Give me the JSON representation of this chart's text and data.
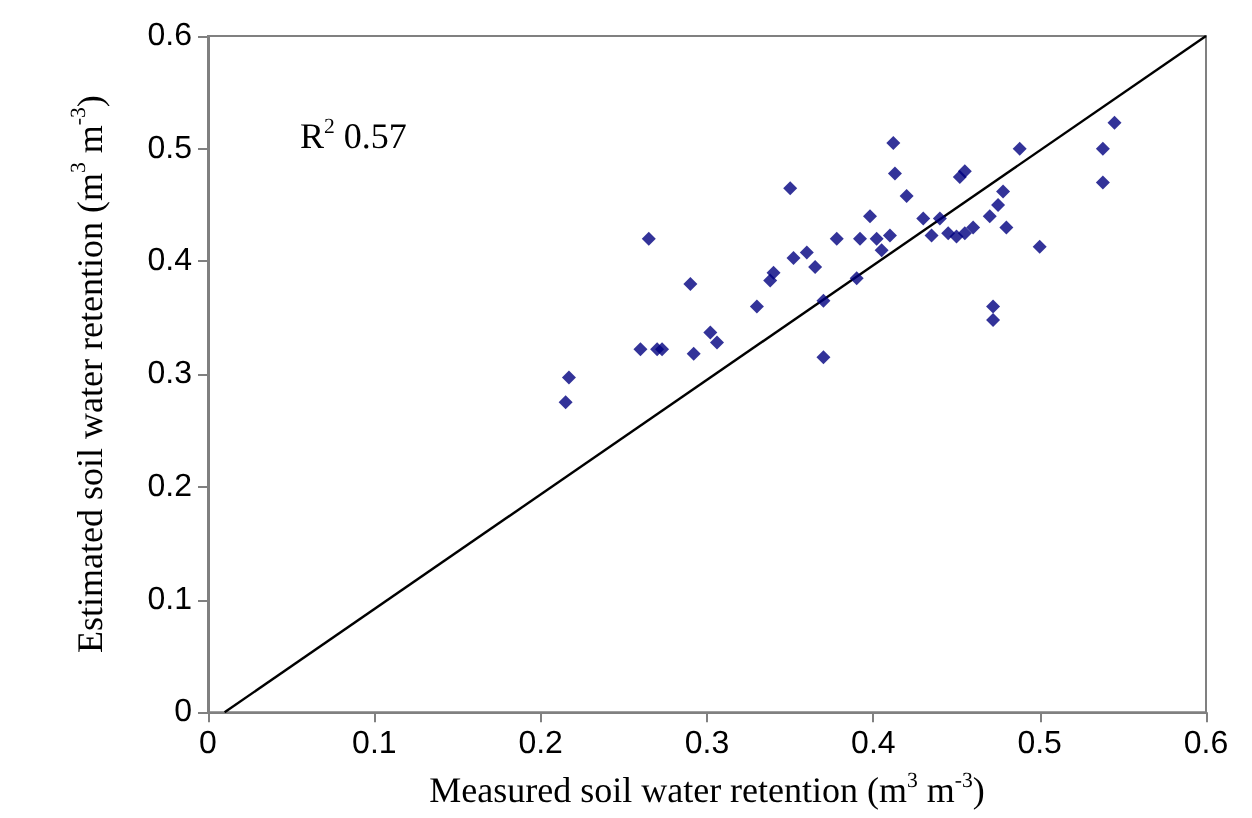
{
  "chart_data": {
    "type": "scatter",
    "xlabel": "Measured soil water retention (m$^{3}$ m$^{-3}$)",
    "ylabel": "Estimated soil water retention (m$^{3}$ m$^{-3}$)",
    "annotations": [
      "R$^{2}$ 0.57"
    ],
    "xlim": [
      0,
      0.6
    ],
    "xticks": [
      0,
      0.1,
      0.2,
      0.3,
      0.4,
      0.5,
      0.6
    ],
    "ylim": [
      0,
      0.6
    ],
    "yticks": [
      0,
      0.1,
      0.2,
      0.3,
      0.4,
      0.5,
      0.6
    ],
    "grid": false,
    "series": [
      {
        "color": "#000080",
        "marker": "diamond",
        "x": [
          0.215,
          0.217,
          0.26,
          0.265,
          0.27,
          0.273,
          0.29,
          0.292,
          0.302,
          0.306,
          0.33,
          0.338,
          0.34,
          0.35,
          0.352,
          0.36,
          0.365,
          0.37,
          0.37,
          0.378,
          0.39,
          0.392,
          0.398,
          0.402,
          0.405,
          0.41,
          0.412,
          0.413,
          0.42,
          0.43,
          0.435,
          0.44,
          0.445,
          0.45,
          0.452,
          0.455,
          0.455,
          0.46,
          0.47,
          0.472,
          0.472,
          0.475,
          0.478,
          0.48,
          0.488,
          0.5,
          0.538,
          0.538,
          0.545
        ],
        "values": [
          0.275,
          0.297,
          0.322,
          0.42,
          0.322,
          0.322,
          0.38,
          0.318,
          0.337,
          0.328,
          0.36,
          0.383,
          0.39,
          0.465,
          0.403,
          0.408,
          0.395,
          0.365,
          0.315,
          0.42,
          0.385,
          0.42,
          0.44,
          0.42,
          0.41,
          0.423,
          0.505,
          0.478,
          0.458,
          0.438,
          0.423,
          0.438,
          0.425,
          0.422,
          0.475,
          0.48,
          0.425,
          0.43,
          0.44,
          0.36,
          0.348,
          0.45,
          0.462,
          0.43,
          0.5,
          0.413,
          0.5,
          0.47,
          0.523
        ]
      },
      {
        "type": "line",
        "color": "#000000",
        "marker": "none",
        "x": [
          0.01,
          0.6
        ],
        "values": [
          0,
          0.6
        ]
      }
    ]
  }
}
